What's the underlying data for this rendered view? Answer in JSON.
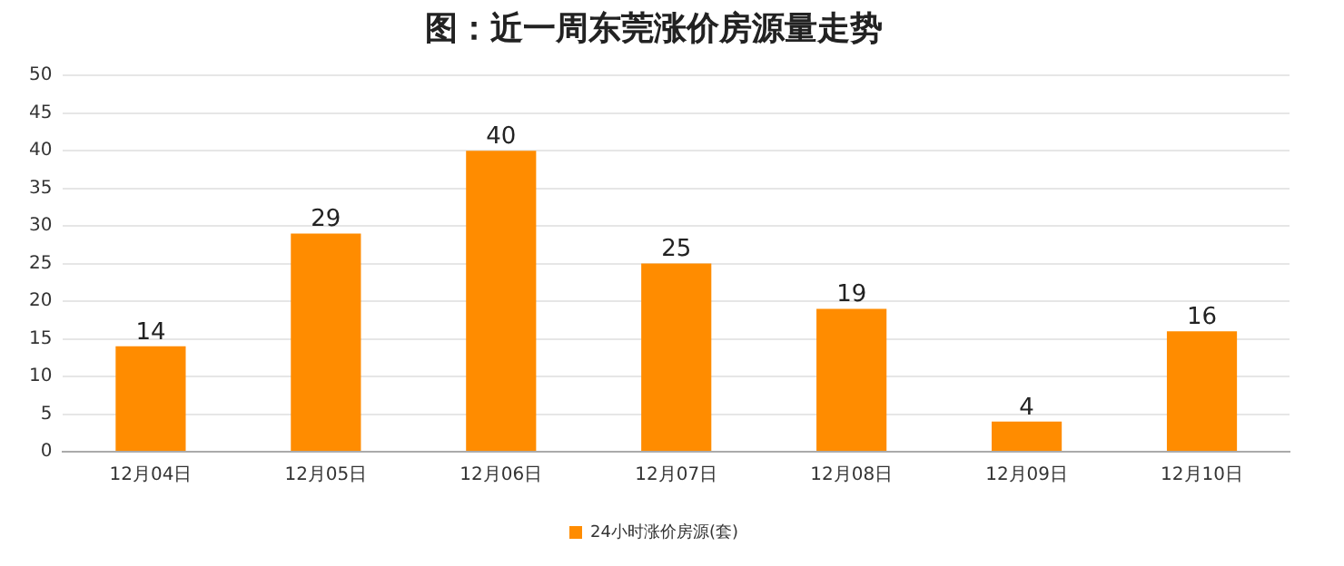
{
  "chart_data": {
    "type": "bar",
    "title": "图：近一周东莞涨价房源量走势",
    "categories": [
      "12月04日",
      "12月05日",
      "12月06日",
      "12月07日",
      "12月08日",
      "12月09日",
      "12月10日"
    ],
    "series": [
      {
        "name": "24小时涨价房源(套)",
        "color": "#ff8c00",
        "values": [
          14,
          29,
          40,
          25,
          19,
          4,
          16
        ]
      }
    ],
    "ylim": [
      0,
      50
    ],
    "yticks": [
      0,
      5,
      10,
      15,
      20,
      25,
      30,
      35,
      40,
      45,
      50
    ],
    "grid": "y",
    "legend": "bottom",
    "data_labels": true
  }
}
